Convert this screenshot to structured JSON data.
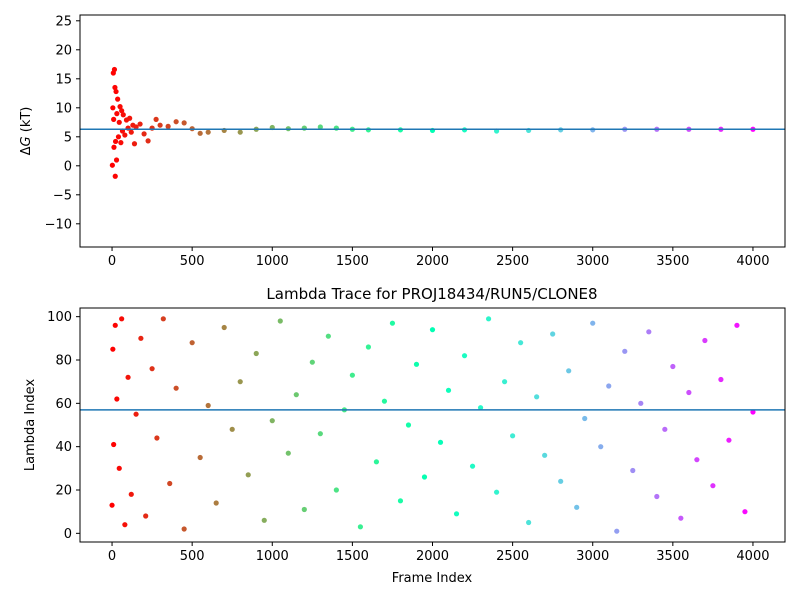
{
  "chart_data": [
    {
      "type": "scatter",
      "title": "",
      "xlabel": "",
      "ylabel_prefix": "Δ",
      "ylabel_italic": "G",
      "ylabel_suffix": " (kT)",
      "xlim": [
        -200,
        4200
      ],
      "ylim": [
        -14,
        26
      ],
      "xticks": [
        0,
        500,
        1000,
        1500,
        2000,
        2500,
        3000,
        3500,
        4000
      ],
      "yticks": [
        -10,
        -5,
        0,
        5,
        10,
        15,
        20,
        25
      ],
      "colormap": "rainbow",
      "hline": {
        "y": 6.3,
        "color": "#1f77b4"
      },
      "series": [
        {
          "x": [
            2,
            5,
            8,
            10,
            12,
            15,
            18,
            20,
            22,
            25,
            28,
            30,
            35,
            40,
            45,
            50,
            55,
            60,
            65,
            70,
            80,
            90,
            100,
            110,
            120,
            130,
            140,
            150,
            175,
            200,
            225,
            250,
            275,
            300,
            350,
            400,
            450,
            500,
            550,
            600,
            700,
            800,
            900,
            1000,
            1100,
            1200,
            1300,
            1400,
            1500,
            1600,
            1800,
            2000,
            2200,
            2400,
            2600,
            2800,
            3000,
            3200,
            3400,
            3600,
            3800,
            4000
          ],
          "y": [
            0.1,
            10.0,
            16.0,
            8.0,
            3.2,
            16.6,
            13.5,
            -1.8,
            4.2,
            12.8,
            1.0,
            9.0,
            11.5,
            5.0,
            7.5,
            10.2,
            4.0,
            9.5,
            6.0,
            8.8,
            5.3,
            7.9,
            6.5,
            8.2,
            5.8,
            7.0,
            3.8,
            6.7,
            7.2,
            5.5,
            4.3,
            6.5,
            8.0,
            7.0,
            6.8,
            7.6,
            7.4,
            6.4,
            5.6,
            5.8,
            6.1,
            5.8,
            6.3,
            6.6,
            6.4,
            6.5,
            6.7,
            6.5,
            6.3,
            6.2,
            6.2,
            6.1,
            6.2,
            6.0,
            6.1,
            6.2,
            6.2,
            6.3,
            6.3,
            6.3,
            6.3,
            6.3
          ]
        }
      ]
    },
    {
      "type": "scatter",
      "title": "Lambda Trace for PROJ18434/RUN5/CLONE8",
      "xlabel": "Frame Index",
      "ylabel": "Lambda Index",
      "xlim": [
        -200,
        4200
      ],
      "ylim": [
        -4,
        104
      ],
      "xticks": [
        0,
        500,
        1000,
        1500,
        2000,
        2500,
        3000,
        3500,
        4000
      ],
      "yticks": [
        0,
        20,
        40,
        60,
        80,
        100
      ],
      "colormap": "rainbow",
      "hline": {
        "y": 57,
        "color": "#1f77b4"
      },
      "series": [
        {
          "x": [
            0,
            5,
            10,
            20,
            30,
            45,
            60,
            80,
            100,
            120,
            150,
            180,
            210,
            250,
            280,
            320,
            360,
            400,
            450,
            500,
            550,
            600,
            650,
            700,
            750,
            800,
            850,
            900,
            950,
            1000,
            1050,
            1100,
            1150,
            1200,
            1250,
            1300,
            1350,
            1400,
            1450,
            1500,
            1550,
            1600,
            1650,
            1700,
            1750,
            1800,
            1850,
            1900,
            1950,
            2000,
            2050,
            2100,
            2150,
            2200,
            2250,
            2300,
            2350,
            2400,
            2450,
            2500,
            2550,
            2600,
            2650,
            2700,
            2750,
            2800,
            2850,
            2900,
            2950,
            3000,
            3050,
            3100,
            3150,
            3200,
            3250,
            3300,
            3350,
            3400,
            3450,
            3500,
            3550,
            3600,
            3650,
            3700,
            3750,
            3800,
            3850,
            3900,
            3950,
            4000
          ],
          "y": [
            13,
            85,
            41,
            96,
            62,
            30,
            99,
            4,
            72,
            18,
            55,
            90,
            8,
            76,
            44,
            99,
            23,
            67,
            2,
            88,
            35,
            59,
            14,
            95,
            48,
            70,
            27,
            83,
            6,
            52,
            98,
            37,
            64,
            11,
            79,
            46,
            91,
            20,
            57,
            73,
            3,
            86,
            33,
            61,
            97,
            15,
            50,
            78,
            26,
            94,
            42,
            66,
            9,
            82,
            31,
            58,
            99,
            19,
            70,
            45,
            88,
            5,
            63,
            36,
            92,
            24,
            75,
            12,
            53,
            97,
            40,
            68,
            1,
            84,
            29,
            60,
            93,
            17,
            48,
            77,
            7,
            65,
            34,
            89,
            22,
            71,
            43,
            96,
            10,
            56
          ]
        }
      ]
    }
  ]
}
